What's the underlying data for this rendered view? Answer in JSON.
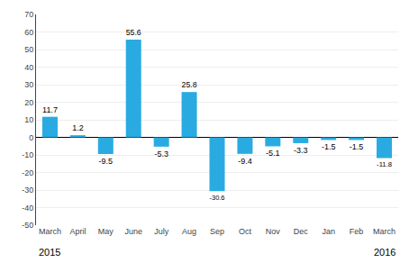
{
  "chart_data": {
    "type": "bar",
    "categories": [
      "March",
      "April",
      "May",
      "June",
      "July",
      "Aug",
      "Sep",
      "Oct",
      "Nov",
      "Dec",
      "Jan",
      "Feb",
      "March"
    ],
    "values": [
      11.7,
      1.2,
      -9.5,
      55.6,
      -5.3,
      25.8,
      -30.6,
      -9.4,
      -5.1,
      -3.3,
      -1.5,
      -1.5,
      -11.8
    ],
    "color": "#29abe2",
    "ylim": [
      -50,
      70
    ],
    "yticks": [
      -50,
      -40,
      -30,
      -20,
      -10,
      0,
      10,
      20,
      30,
      40,
      50,
      60,
      70
    ],
    "grid": true,
    "data_labels": true,
    "annotations": [
      {
        "text": "2015",
        "x": 0
      },
      {
        "text": "2016",
        "x": 12
      }
    ]
  }
}
